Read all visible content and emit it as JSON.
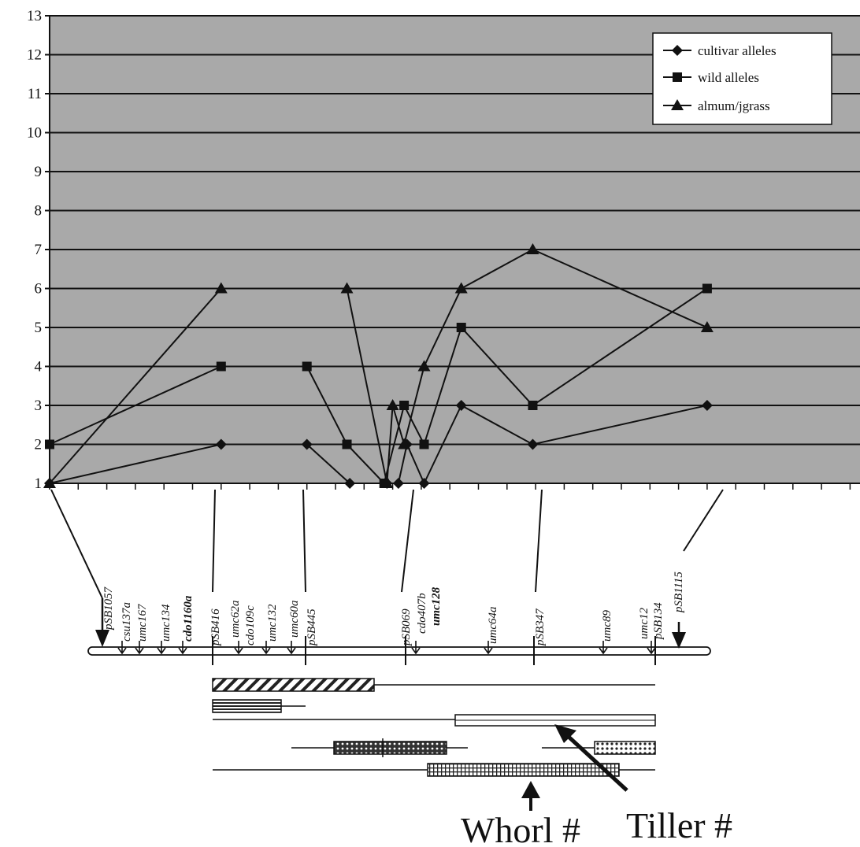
{
  "chart_data": {
    "type": "line",
    "ylim": [
      1,
      13
    ],
    "yticks": [
      1,
      2,
      3,
      4,
      5,
      6,
      7,
      8,
      9,
      10,
      11,
      12,
      13
    ],
    "grid": true,
    "legend_position": "top-right",
    "series": [
      {
        "name": "cultivar alleles",
        "marker": "diamond",
        "segments": [
          [
            [
              1,
              1
            ],
            [
              7,
              2
            ]
          ],
          [
            [
              10,
              2
            ],
            [
              11.5,
              1
            ]
          ],
          [
            [
              12.8,
              1
            ],
            [
              13.2,
              1
            ],
            [
              13.5,
              2
            ],
            [
              14.1,
              1
            ],
            [
              15.4,
              3
            ],
            [
              17.9,
              2
            ],
            [
              24,
              3
            ]
          ]
        ]
      },
      {
        "name": "wild alleles",
        "marker": "square",
        "segments": [
          [
            [
              1,
              2
            ],
            [
              7,
              4
            ]
          ],
          [
            [
              10,
              4
            ],
            [
              11.4,
              2
            ],
            [
              12.7,
              1
            ],
            [
              13.4,
              3
            ],
            [
              14.1,
              2
            ],
            [
              15.4,
              5
            ],
            [
              17.9,
              3
            ],
            [
              24,
              6
            ]
          ]
        ]
      },
      {
        "name": "almum/jgrass",
        "marker": "triangle",
        "segments": [
          [
            [
              1,
              1
            ],
            [
              7,
              6
            ]
          ],
          [
            [
              11.4,
              6
            ],
            [
              12.8,
              1
            ],
            [
              13,
              3
            ],
            [
              13.4,
              2
            ],
            [
              14.1,
              4
            ],
            [
              15.4,
              6
            ],
            [
              17.9,
              7
            ],
            [
              24,
              5
            ]
          ]
        ]
      }
    ]
  },
  "chromosome_map": {
    "markers": [
      {
        "name": "pSB1057",
        "style": "italic"
      },
      {
        "name": "csu137a",
        "style": "italic"
      },
      {
        "name": "umc167",
        "style": "italic"
      },
      {
        "name": "umc134",
        "style": "italic"
      },
      {
        "name": "cdo1160a",
        "style": "bold-italic"
      },
      {
        "name": "pSB416",
        "style": "italic"
      },
      {
        "name": "umc62a",
        "style": "italic"
      },
      {
        "name": "cdo109c",
        "style": "italic"
      },
      {
        "name": "umc132",
        "style": "italic"
      },
      {
        "name": "umc60a",
        "style": "italic"
      },
      {
        "name": "pSB445",
        "style": "italic"
      },
      {
        "name": "pSB069",
        "style": "italic"
      },
      {
        "name": "cdo407b",
        "style": "italic"
      },
      {
        "name": "umc128",
        "style": "bold-italic"
      },
      {
        "name": "umc64a",
        "style": "italic"
      },
      {
        "name": "pSB347",
        "style": "italic"
      },
      {
        "name": "umc89",
        "style": "italic"
      },
      {
        "name": "umc12",
        "style": "italic"
      },
      {
        "name": "pSB134",
        "style": "italic"
      },
      {
        "name": "pSB1115",
        "style": "italic"
      }
    ]
  },
  "qtl_labels": {
    "whorl": "Whorl #",
    "tiller": "Tiller #"
  }
}
